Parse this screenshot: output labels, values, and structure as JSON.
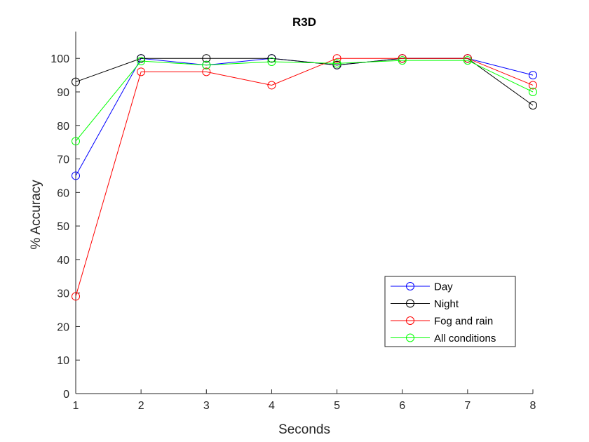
{
  "chart_data": {
    "type": "line",
    "title": "R3D",
    "xlabel": "Seconds",
    "ylabel": "% Accuracy",
    "x": [
      1,
      2,
      3,
      4,
      5,
      6,
      7,
      8
    ],
    "xlim": [
      1,
      8
    ],
    "ylim": [
      0,
      108
    ],
    "xticks": [
      "1",
      "2",
      "3",
      "4",
      "5",
      "6",
      "7",
      "8"
    ],
    "yticks": [
      "0",
      "10",
      "20",
      "30",
      "40",
      "50",
      "60",
      "70",
      "80",
      "90",
      "100"
    ],
    "grid": false,
    "legend_position": "bottom-right",
    "marker": "open-circle",
    "series": [
      {
        "name": "Day",
        "color": "#0000ff",
        "values": [
          65,
          100,
          98,
          100,
          98,
          100,
          100,
          95
        ]
      },
      {
        "name": "Night",
        "color": "#000000",
        "values": [
          93,
          100,
          100,
          100,
          98,
          100,
          100,
          86
        ]
      },
      {
        "name": "Fog and rain",
        "color": "#ff0000",
        "values": [
          29,
          96,
          96,
          92,
          100,
          100,
          100,
          92
        ]
      },
      {
        "name": "All conditions",
        "color": "#00ff00",
        "values": [
          75.3,
          99.2,
          98,
          99,
          98.5,
          99.4,
          99.4,
          90
        ]
      }
    ]
  }
}
